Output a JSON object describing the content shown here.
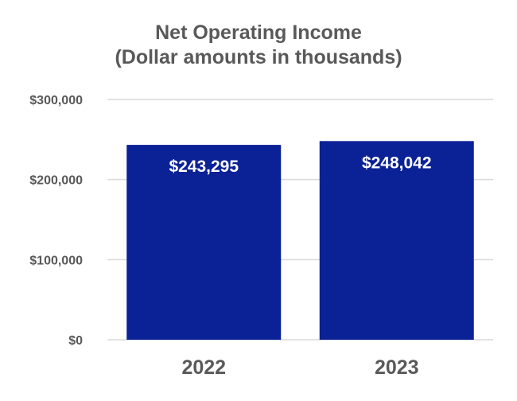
{
  "chart_data": {
    "type": "bar",
    "title": [
      "Net Operating Income",
      "(Dollar amounts in thousands)"
    ],
    "categories": [
      "2022",
      "2023"
    ],
    "values": [
      243295,
      248042
    ],
    "data_labels": [
      "$243,295",
      "$248,042"
    ],
    "ylim": [
      0,
      300000
    ],
    "y_ticks": [
      0,
      100000,
      200000,
      300000
    ],
    "y_tick_labels": [
      "$0",
      "$100,000",
      "$200,000",
      "$300,000"
    ],
    "grid": true,
    "legend": "none",
    "bar_color": "#0b2196",
    "grid_color": "#d9d9d9",
    "text_color": "#595959"
  }
}
